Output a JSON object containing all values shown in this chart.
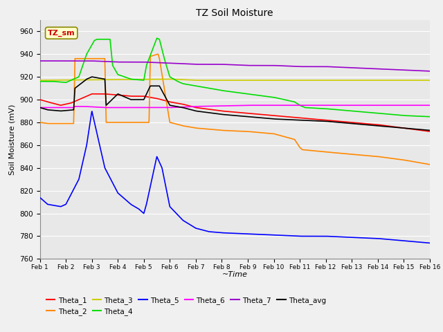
{
  "title": "TZ Soil Moisture",
  "xlabel": "~Time",
  "ylabel": "Soil Moisture (mV)",
  "ylim": [
    760,
    970
  ],
  "xlim": [
    0,
    15
  ],
  "xtick_labels": [
    "Feb 1",
    "Feb 2",
    "Feb 3",
    "Feb 4",
    "Feb 5",
    "Feb 6",
    "Feb 7",
    "Feb 8",
    "Feb 9",
    "Feb 10",
    "Feb 11",
    "Feb 12",
    "Feb 13",
    "Feb 14",
    "Feb 15",
    "Feb 16"
  ],
  "bg_color": "#e8e8e8",
  "fig_bg_color": "#f0f0f0",
  "legend_label": "TZ_sm",
  "series_colors": {
    "Theta_1": "#ff0000",
    "Theta_2": "#ff8800",
    "Theta_3": "#cccc00",
    "Theta_4": "#00dd00",
    "Theta_5": "#0000ff",
    "Theta_6": "#ff00ff",
    "Theta_7": "#9900cc",
    "Theta_avg": "#000000"
  }
}
